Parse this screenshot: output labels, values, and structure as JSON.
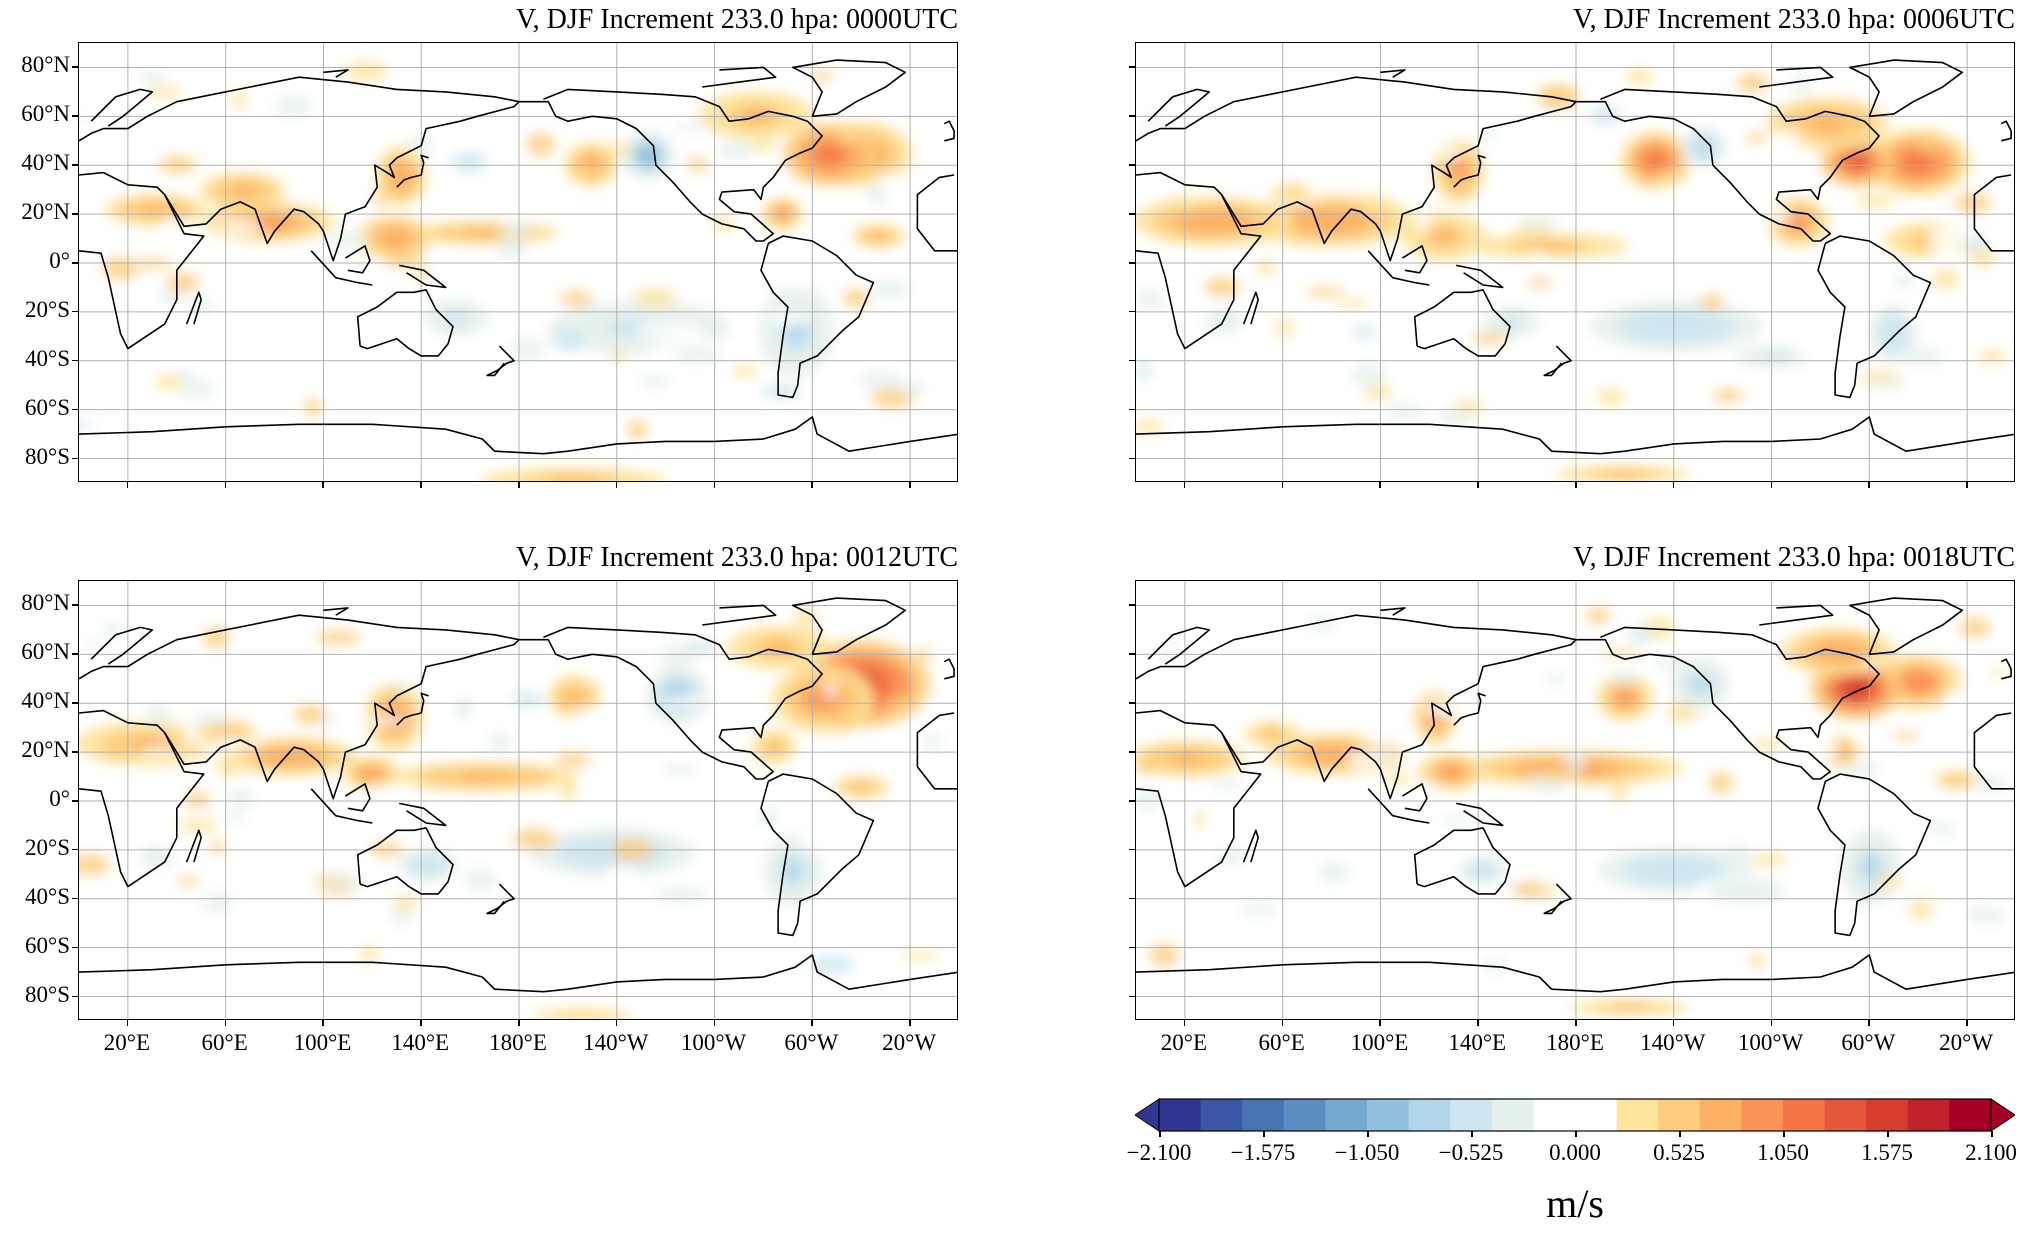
{
  "panels": [
    {
      "title": "V, DJF Increment 233.0 hpa:  0000UTC",
      "show_y_labels": true,
      "show_x_labels": false,
      "seed": 11
    },
    {
      "title": "V, DJF Increment 233.0 hpa:  0006UTC",
      "show_y_labels": false,
      "show_x_labels": false,
      "seed": 23
    },
    {
      "title": "V, DJF Increment 233.0 hpa:  0012UTC",
      "show_y_labels": true,
      "show_x_labels": true,
      "seed": 37
    },
    {
      "title": "V, DJF Increment 233.0 hpa:  0018UTC",
      "show_y_labels": false,
      "show_x_labels": true,
      "seed": 53
    }
  ],
  "lat_ticks": [
    80,
    60,
    40,
    20,
    0,
    -20,
    -40,
    -60,
    -80
  ],
  "lat_labels": [
    "80°N",
    "60°N",
    "40°N",
    "20°N",
    "0°",
    "20°S",
    "40°S",
    "60°S",
    "80°S"
  ],
  "lon_ticks": [
    20,
    60,
    100,
    140,
    180,
    220,
    260,
    300,
    340
  ],
  "lon_labels": [
    "20°E",
    "60°E",
    "100°E",
    "140°E",
    "180°E",
    "140°W",
    "100°W",
    "60°W",
    "20°W"
  ],
  "colorbar": {
    "units": "m/s",
    "min": -2.1,
    "max": 2.1,
    "tick_labels": [
      "−2.100",
      "−1.575",
      "−1.050",
      "−0.525",
      "0.000",
      "0.525",
      "1.050",
      "1.575",
      "2.100"
    ],
    "colors": [
      "#313695",
      "#3a56a4",
      "#4874b2",
      "#5b8fc2",
      "#74a9d0",
      "#92c0dd",
      "#b0d6e8",
      "#cde6f0",
      "#e5f1ec",
      "#ffffff",
      "#ffffff",
      "#fde39b",
      "#fdcc7d",
      "#fcb064",
      "#f99355",
      "#f47647",
      "#e5573a",
      "#d63d2e",
      "#c0242a",
      "#a50026"
    ],
    "extend_low_color": "#313695",
    "extend_high_color": "#a50026"
  }
}
